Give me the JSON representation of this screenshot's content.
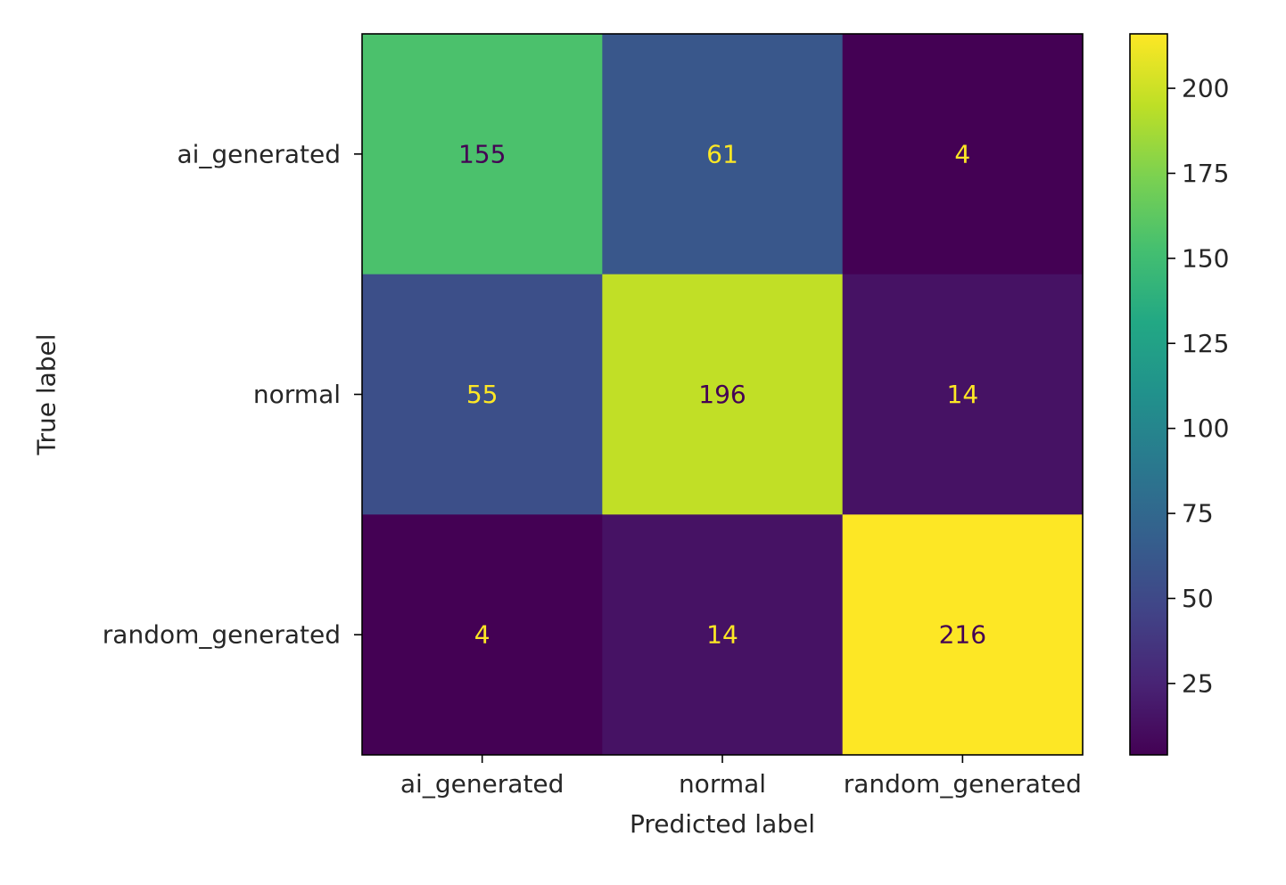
{
  "chart_data": {
    "type": "heatmap",
    "title": "",
    "xlabel": "Predicted label",
    "ylabel": "True label",
    "x_categories": [
      "ai_generated",
      "normal",
      "random_generated"
    ],
    "y_categories": [
      "ai_generated",
      "normal",
      "random_generated"
    ],
    "matrix": [
      [
        155,
        61,
        4
      ],
      [
        55,
        196,
        14
      ],
      [
        4,
        14,
        216
      ]
    ],
    "colormap": "viridis",
    "colorbar": {
      "min": 4,
      "max": 216,
      "ticks": [
        25,
        50,
        75,
        100,
        125,
        150,
        175,
        200
      ]
    },
    "grid": false,
    "colors": {
      "low_text": "#fde725",
      "high_text": "#440154",
      "axis": "#000000",
      "text": "#262626"
    }
  }
}
